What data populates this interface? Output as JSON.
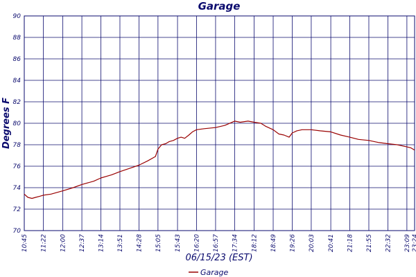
{
  "chart_data": {
    "type": "line",
    "title": "Garage",
    "xlabel": "06/15/23 (EST)",
    "ylabel": "Degrees F",
    "ylim": [
      70,
      90
    ],
    "yticks": [
      70,
      72,
      74,
      76,
      78,
      80,
      82,
      84,
      86,
      88,
      90
    ],
    "xticks": [
      "10:45",
      "11:22",
      "12:00",
      "12:37",
      "13:14",
      "13:51",
      "14:28",
      "15:05",
      "15:43",
      "16:20",
      "16:57",
      "17:34",
      "18:12",
      "18:49",
      "19:26",
      "20:03",
      "20:41",
      "21:18",
      "21:55",
      "22:32",
      "23:09",
      "23:24"
    ],
    "grid": true,
    "legend_position": "bottom-center",
    "line_color": "#990000",
    "grid_color": "#0b0b6e",
    "series": [
      {
        "name": "Garage",
        "x": [
          "10:45",
          "10:52",
          "11:00",
          "11:07",
          "11:15",
          "11:22",
          "11:37",
          "12:00",
          "12:20",
          "12:37",
          "13:00",
          "13:14",
          "13:35",
          "13:51",
          "14:10",
          "14:28",
          "14:45",
          "15:00",
          "15:05",
          "15:12",
          "15:20",
          "15:27",
          "15:35",
          "15:43",
          "15:50",
          "15:57",
          "16:05",
          "16:12",
          "16:20",
          "16:35",
          "16:57",
          "17:15",
          "17:34",
          "17:45",
          "18:00",
          "18:12",
          "18:25",
          "18:35",
          "18:49",
          "19:00",
          "19:10",
          "19:20",
          "19:26",
          "19:35",
          "19:45",
          "20:03",
          "20:20",
          "20:41",
          "21:00",
          "21:18",
          "21:35",
          "21:55",
          "22:15",
          "22:32",
          "22:50",
          "23:09",
          "23:17",
          "23:24"
        ],
        "y": [
          73.4,
          73.1,
          73.0,
          73.1,
          73.2,
          73.3,
          73.4,
          73.7,
          74.0,
          74.3,
          74.6,
          74.9,
          75.2,
          75.5,
          75.8,
          76.1,
          76.5,
          76.9,
          77.6,
          78.0,
          78.1,
          78.3,
          78.4,
          78.6,
          78.7,
          78.6,
          78.9,
          79.2,
          79.4,
          79.5,
          79.6,
          79.8,
          80.2,
          80.1,
          80.2,
          80.1,
          80.0,
          79.7,
          79.4,
          79.0,
          78.9,
          78.7,
          79.1,
          79.3,
          79.4,
          79.4,
          79.3,
          79.2,
          78.9,
          78.7,
          78.5,
          78.4,
          78.2,
          78.1,
          78.0,
          77.8,
          77.7,
          77.5
        ]
      }
    ]
  }
}
